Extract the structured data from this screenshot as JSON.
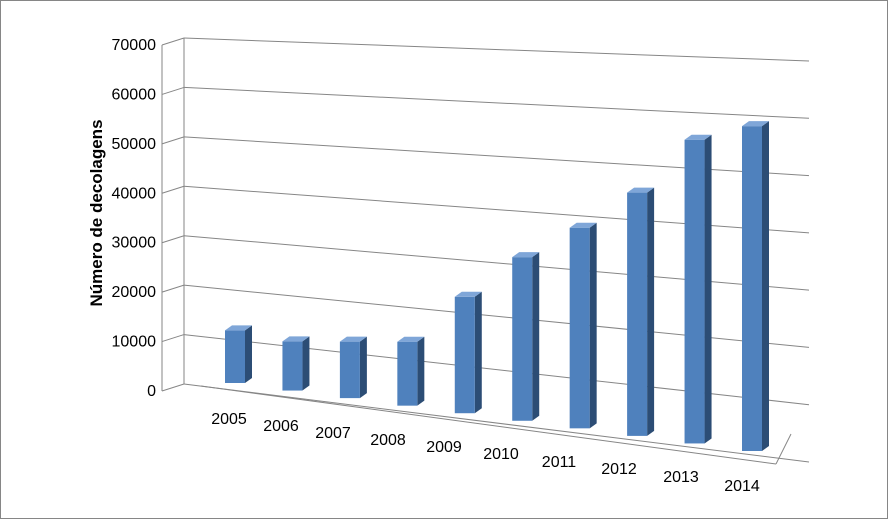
{
  "chart_data": {
    "type": "bar",
    "title": "",
    "xlabel": "",
    "ylabel": "Número de decolagens",
    "categories": [
      "2005",
      "2006",
      "2007",
      "2008",
      "2009",
      "2010",
      "2011",
      "2012",
      "2013",
      "2014"
    ],
    "series": [
      {
        "values": [
          12500,
          11500,
          13000,
          14500,
          26000,
          36000,
          43500,
          52000,
          64000,
          67500
        ]
      }
    ],
    "y_ticks": [
      "0",
      "10000",
      "20000",
      "30000",
      "40000",
      "50000",
      "60000",
      "70000"
    ],
    "ylim": [
      0,
      70000
    ],
    "grid": true,
    "legend": "none",
    "bar_color": "#4F81BD",
    "bar_side_color": "#2C4D75",
    "bar_top_color": "#7FA6D8",
    "grid_color": "#868686"
  }
}
